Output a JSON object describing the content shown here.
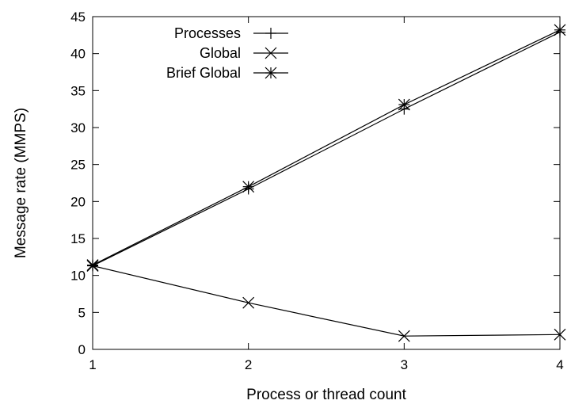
{
  "chart_data": {
    "type": "line",
    "xlabel": "Process or thread count",
    "ylabel": "Message rate (MMPS)",
    "xlim": [
      1,
      4
    ],
    "ylim": [
      0,
      45
    ],
    "x_ticks": [
      1,
      2,
      3,
      4
    ],
    "y_ticks": [
      0,
      5,
      10,
      15,
      20,
      25,
      30,
      35,
      40,
      45
    ],
    "grid": false,
    "legend_position": "top-left",
    "series": [
      {
        "name": "Processes",
        "marker": "plus",
        "x": [
          1,
          2,
          3,
          4
        ],
        "values": [
          11.3,
          21.7,
          32.5,
          42.9
        ]
      },
      {
        "name": "Global",
        "marker": "cross",
        "x": [
          1,
          2,
          3,
          4
        ],
        "values": [
          11.3,
          6.3,
          1.8,
          2.0
        ]
      },
      {
        "name": "Brief Global",
        "marker": "star",
        "x": [
          1,
          2,
          3,
          4
        ],
        "values": [
          11.4,
          22.0,
          33.1,
          43.2
        ]
      }
    ]
  }
}
